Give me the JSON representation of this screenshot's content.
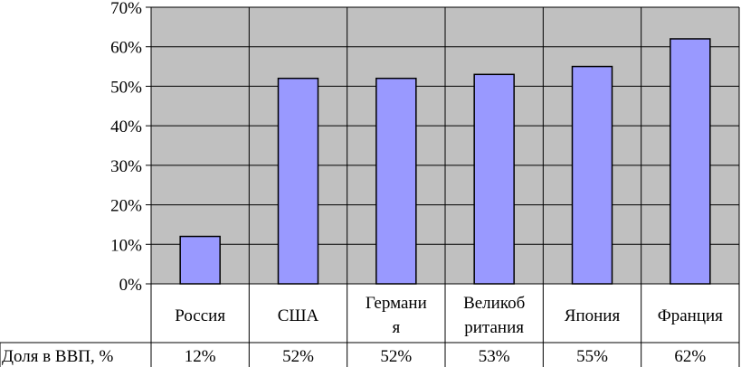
{
  "chart_data": {
    "type": "bar",
    "categories": [
      "Россия",
      "США",
      "Германия",
      "Великобритания",
      "Япония",
      "Франция"
    ],
    "category_display_lines": [
      [
        "Россия"
      ],
      [
        "США"
      ],
      [
        "Германи",
        "я"
      ],
      [
        "Великоб",
        "ритания"
      ],
      [
        "Япония"
      ],
      [
        "Франция"
      ]
    ],
    "series": [
      {
        "name": "Доля в ВВП, %",
        "values": [
          12,
          52,
          52,
          53,
          55,
          62
        ]
      }
    ],
    "table_values": [
      "12%",
      "52%",
      "52%",
      "53%",
      "55%",
      "62%"
    ],
    "table_row_label": "Доля в ВВП, %",
    "ylim": [
      0,
      70
    ],
    "yticks": [
      "0%",
      "10%",
      "20%",
      "30%",
      "40%",
      "50%",
      "60%",
      "70%"
    ],
    "grid": true,
    "legend": "none",
    "colors": {
      "bar_fill": "#9999ff",
      "plot_background": "#c0c0c0",
      "grid": "#000000"
    }
  }
}
